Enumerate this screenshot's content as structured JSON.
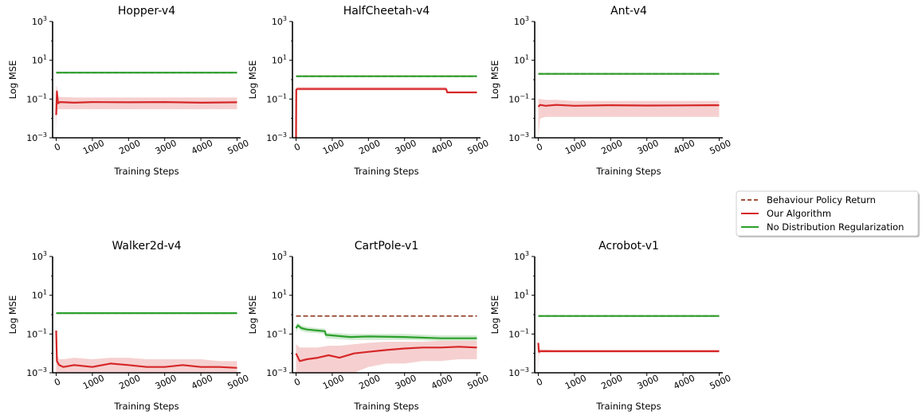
{
  "chart_data": [
    {
      "type": "line",
      "title": "Hopper-v4",
      "xlabel": "Training Steps",
      "ylabel": "Log MSE",
      "yscale": "log",
      "xlim": [
        -100,
        5100
      ],
      "ylim": [
        0.001,
        1000
      ],
      "x_ticks": [
        "0",
        "1000",
        "2000",
        "3000",
        "4000",
        "5000"
      ],
      "series": [
        {
          "name": "Behaviour Policy Return",
          "style": "dashed",
          "color": "#a0523d",
          "x": [
            0,
            5000
          ],
          "values": [
            2.3,
            2.3
          ]
        },
        {
          "name": "Our Algorithm",
          "style": "solid",
          "color": "#d62728",
          "x": [
            0,
            20,
            50,
            100,
            500,
            1000,
            2000,
            3000,
            4000,
            5000
          ],
          "values": [
            0.015,
            0.25,
            0.06,
            0.07,
            0.065,
            0.07,
            0.068,
            0.07,
            0.065,
            0.068
          ],
          "band_low": [
            0.003,
            0.015,
            0.03,
            0.03,
            0.03,
            0.03,
            0.03,
            0.03,
            0.03,
            0.03
          ],
          "band_high": [
            0.45,
            0.45,
            0.13,
            0.13,
            0.12,
            0.12,
            0.12,
            0.12,
            0.12,
            0.12
          ]
        },
        {
          "name": "No Distribution Regularization",
          "style": "solid",
          "color": "#2ca02c",
          "x": [
            0,
            5000
          ],
          "values": [
            2.3,
            2.3
          ]
        }
      ]
    },
    {
      "type": "line",
      "title": "HalfCheetah-v4",
      "xlabel": "Training Steps",
      "ylabel": "Log MSE",
      "yscale": "log",
      "xlim": [
        -100,
        5100
      ],
      "ylim": [
        0.001,
        1000
      ],
      "x_ticks": [
        "0",
        "1000",
        "2000",
        "3000",
        "4000",
        "5000"
      ],
      "series": [
        {
          "name": "Behaviour Policy Return",
          "style": "dashed",
          "color": "#a0523d",
          "x": [
            0,
            5000
          ],
          "values": [
            1.5,
            1.5
          ]
        },
        {
          "name": "Our Algorithm",
          "style": "solid",
          "color": "#d62728",
          "x": [
            0,
            5,
            30,
            1000,
            2000,
            3000,
            4000,
            4150,
            4180,
            5000
          ],
          "values": [
            0.001,
            0.3,
            0.33,
            0.33,
            0.33,
            0.33,
            0.33,
            0.33,
            0.22,
            0.22
          ],
          "band_low": [
            0.001,
            0.25,
            0.28,
            0.28,
            0.28,
            0.28,
            0.28,
            0.28,
            0.2,
            0.2
          ],
          "band_high": [
            0.001,
            0.4,
            0.42,
            0.42,
            0.42,
            0.42,
            0.42,
            0.42,
            0.24,
            0.24
          ]
        },
        {
          "name": "No Distribution Regularization",
          "style": "solid",
          "color": "#2ca02c",
          "x": [
            0,
            5000
          ],
          "values": [
            1.5,
            1.5
          ]
        }
      ]
    },
    {
      "type": "line",
      "title": "Ant-v4",
      "xlabel": "Training Steps",
      "ylabel": "Log MSE",
      "yscale": "log",
      "xlim": [
        -100,
        5100
      ],
      "ylim": [
        0.001,
        1000
      ],
      "x_ticks": [
        "0",
        "1000",
        "2000",
        "3000",
        "4000",
        "5000"
      ],
      "series": [
        {
          "name": "Behaviour Policy Return",
          "style": "dashed",
          "color": "#a0523d",
          "x": [
            0,
            5000
          ],
          "values": [
            2.0,
            2.0
          ]
        },
        {
          "name": "Our Algorithm",
          "style": "solid",
          "color": "#d62728",
          "x": [
            0,
            50,
            200,
            500,
            1000,
            2000,
            3000,
            4000,
            5000
          ],
          "values": [
            0.04,
            0.05,
            0.045,
            0.05,
            0.045,
            0.048,
            0.046,
            0.047,
            0.048
          ],
          "band_low": [
            0.001,
            0.01,
            0.012,
            0.012,
            0.012,
            0.012,
            0.012,
            0.012,
            0.012
          ],
          "band_high": [
            0.1,
            0.1,
            0.09,
            0.09,
            0.08,
            0.08,
            0.08,
            0.08,
            0.08
          ]
        },
        {
          "name": "No Distribution Regularization",
          "style": "solid",
          "color": "#2ca02c",
          "x": [
            0,
            5000
          ],
          "values": [
            2.0,
            2.0
          ]
        }
      ]
    },
    {
      "type": "line",
      "title": "Walker2d-v4",
      "xlabel": "Training Steps",
      "ylabel": "Log MSE",
      "yscale": "log",
      "xlim": [
        -100,
        5100
      ],
      "ylim": [
        0.001,
        1000
      ],
      "x_ticks": [
        "0",
        "1000",
        "2000",
        "3000",
        "4000",
        "5000"
      ],
      "series": [
        {
          "name": "Behaviour Policy Return",
          "style": "dashed",
          "color": "#a0523d",
          "x": [
            0,
            5000
          ],
          "values": [
            1.2,
            1.2
          ]
        },
        {
          "name": "Our Algorithm",
          "style": "solid",
          "color": "#d62728",
          "x": [
            0,
            20,
            80,
            200,
            500,
            1000,
            1500,
            2000,
            2500,
            3000,
            3500,
            4000,
            4500,
            5000
          ],
          "values": [
            0.15,
            0.004,
            0.0025,
            0.002,
            0.0025,
            0.002,
            0.003,
            0.0025,
            0.002,
            0.002,
            0.0025,
            0.002,
            0.002,
            0.0018
          ],
          "band_low": [
            0.001,
            0.001,
            0.001,
            0.001,
            0.001,
            0.001,
            0.001,
            0.001,
            0.001,
            0.001,
            0.001,
            0.001,
            0.001,
            0.001
          ],
          "band_high": [
            0.2,
            0.01,
            0.005,
            0.005,
            0.006,
            0.005,
            0.006,
            0.006,
            0.005,
            0.005,
            0.005,
            0.005,
            0.004,
            0.004
          ]
        },
        {
          "name": "No Distribution Regularization",
          "style": "solid",
          "color": "#2ca02c",
          "x": [
            0,
            5000
          ],
          "values": [
            1.2,
            1.2
          ]
        }
      ]
    },
    {
      "type": "line",
      "title": "CartPole-v1",
      "xlabel": "Training Steps",
      "ylabel": "Log MSE",
      "yscale": "log",
      "xlim": [
        -100,
        5100
      ],
      "ylim": [
        0.001,
        1000
      ],
      "x_ticks": [
        "0",
        "1000",
        "2000",
        "3000",
        "4000",
        "5000"
      ],
      "series": [
        {
          "name": "Behaviour Policy Return",
          "style": "dashed",
          "color": "#a0523d",
          "x": [
            0,
            5000
          ],
          "values": [
            0.85,
            0.85
          ]
        },
        {
          "name": "No Distribution Regularization",
          "style": "solid",
          "color": "#2ca02c",
          "x": [
            0,
            50,
            150,
            300,
            600,
            800,
            820,
            1500,
            2000,
            3000,
            4000,
            5000
          ],
          "values": [
            0.2,
            0.28,
            0.2,
            0.17,
            0.15,
            0.14,
            0.09,
            0.07,
            0.075,
            0.07,
            0.06,
            0.06
          ],
          "band_low": [
            0.12,
            0.2,
            0.14,
            0.12,
            0.11,
            0.1,
            0.06,
            0.05,
            0.05,
            0.05,
            0.045,
            0.045
          ],
          "band_high": [
            0.3,
            0.38,
            0.28,
            0.23,
            0.2,
            0.19,
            0.12,
            0.1,
            0.1,
            0.1,
            0.085,
            0.085
          ]
        },
        {
          "name": "Our Algorithm",
          "style": "solid",
          "color": "#d62728",
          "x": [
            0,
            100,
            300,
            600,
            900,
            1200,
            1600,
            2000,
            2500,
            3000,
            3500,
            4000,
            4500,
            5000
          ],
          "values": [
            0.01,
            0.004,
            0.005,
            0.006,
            0.008,
            0.006,
            0.01,
            0.012,
            0.015,
            0.018,
            0.02,
            0.02,
            0.022,
            0.02
          ],
          "band_low": [
            0.001,
            0.001,
            0.001,
            0.001,
            0.001,
            0.001,
            0.001,
            0.002,
            0.003,
            0.003,
            0.004,
            0.004,
            0.005,
            0.005
          ],
          "band_high": [
            0.03,
            0.02,
            0.02,
            0.02,
            0.025,
            0.025,
            0.03,
            0.035,
            0.04,
            0.04,
            0.04,
            0.045,
            0.045,
            0.045
          ]
        }
      ]
    },
    {
      "type": "line",
      "title": "Acrobot-v1",
      "xlabel": "Training Steps",
      "ylabel": "Log MSE",
      "yscale": "log",
      "xlim": [
        -100,
        5100
      ],
      "ylim": [
        0.001,
        1000
      ],
      "x_ticks": [
        "0",
        "1000",
        "2000",
        "3000",
        "4000",
        "5000"
      ],
      "series": [
        {
          "name": "Behaviour Policy Return",
          "style": "dashed",
          "color": "#a0523d",
          "x": [
            0,
            5000
          ],
          "values": [
            0.85,
            0.85
          ]
        },
        {
          "name": "Our Algorithm",
          "style": "solid",
          "color": "#d62728",
          "x": [
            0,
            15,
            60,
            500,
            1000,
            2000,
            3000,
            4000,
            5000
          ],
          "values": [
            0.035,
            0.012,
            0.013,
            0.013,
            0.013,
            0.013,
            0.013,
            0.013,
            0.013
          ],
          "band_low": [
            0.001,
            0.008,
            0.011,
            0.011,
            0.011,
            0.011,
            0.011,
            0.011,
            0.011
          ],
          "band_high": [
            0.045,
            0.02,
            0.016,
            0.015,
            0.015,
            0.015,
            0.015,
            0.015,
            0.015
          ]
        },
        {
          "name": "No Distribution Regularization",
          "style": "solid",
          "color": "#2ca02c",
          "x": [
            0,
            5000
          ],
          "values": [
            0.85,
            0.85
          ]
        }
      ]
    }
  ],
  "legend": {
    "placement": "right",
    "entries": [
      {
        "label": "Behaviour Policy Return",
        "color": "#a0523d",
        "style": "dashed"
      },
      {
        "label": "Our Algorithm",
        "color": "#d62728",
        "style": "solid"
      },
      {
        "label": "No Distribution Regularization",
        "color": "#2ca02c",
        "style": "solid"
      }
    ]
  }
}
